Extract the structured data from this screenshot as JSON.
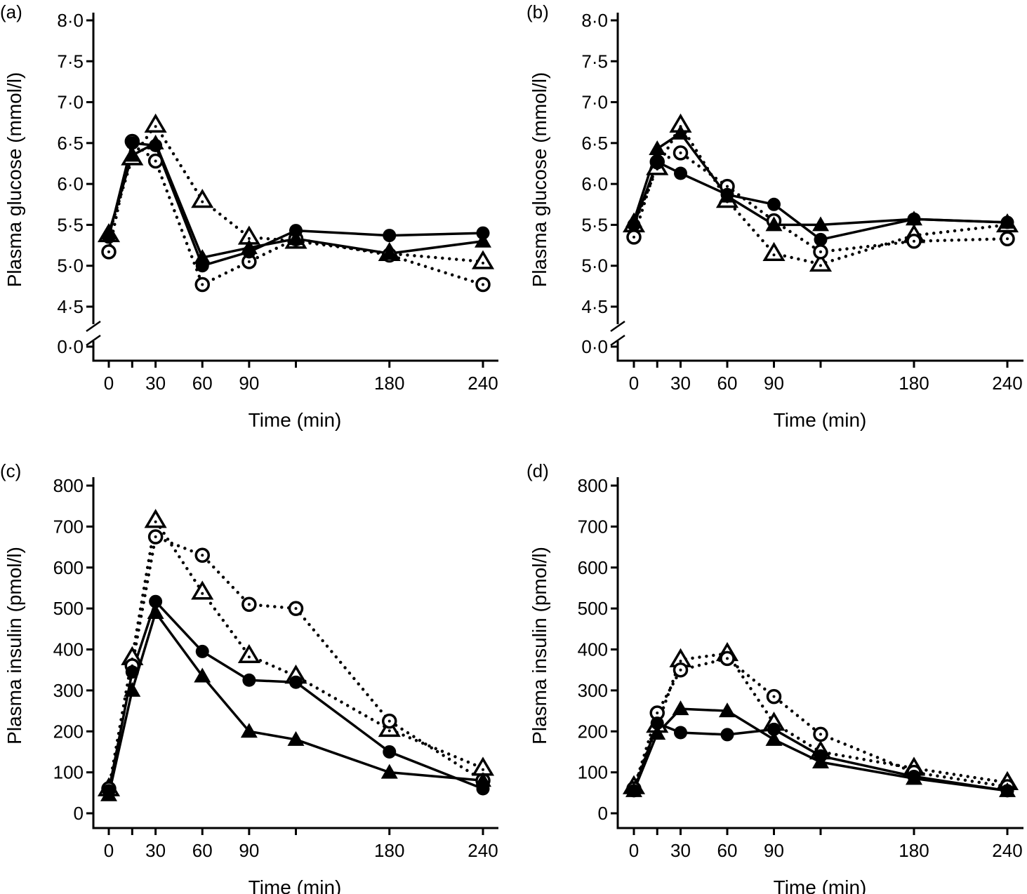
{
  "chart_data": [
    {
      "type": "line",
      "panel_label": "(a)",
      "xlabel": "Time (min)",
      "ylabel": "Plasma glucose (mmol/l)",
      "x": [
        0,
        15,
        30,
        60,
        90,
        120,
        180,
        240
      ],
      "xticks": [
        0,
        30,
        60,
        90,
        180,
        240
      ],
      "xtick_labels": [
        "0",
        "30",
        "60",
        "90",
        "180",
        "240"
      ],
      "yticks": [
        4.5,
        5.0,
        5.5,
        6.0,
        6.5,
        7.0,
        7.5,
        8.0
      ],
      "ytick_labels": [
        "4·5",
        "5·0",
        "5·5",
        "6·0",
        "6·5",
        "7·0",
        "7·5",
        "8·0"
      ],
      "broken_axis": true,
      "break_tick_label": "0·0",
      "ylim": [
        4.5,
        8.0
      ],
      "series": [
        {
          "marker": "open-triangle",
          "line": "dotted",
          "values": [
            5.38,
            6.32,
            6.72,
            5.8,
            5.35,
            5.3,
            5.15,
            5.05
          ]
        },
        {
          "marker": "open-circle",
          "line": "dotted",
          "values": [
            5.17,
            6.52,
            6.28,
            4.77,
            5.05,
            5.33,
            5.13,
            4.77
          ]
        },
        {
          "marker": "filled-triangle",
          "line": "solid",
          "values": [
            5.4,
            6.35,
            6.5,
            5.1,
            5.22,
            5.33,
            5.15,
            5.3
          ]
        },
        {
          "marker": "filled-circle",
          "line": "solid",
          "values": [
            5.35,
            6.5,
            6.47,
            5.0,
            5.17,
            5.43,
            5.37,
            5.4
          ]
        }
      ]
    },
    {
      "type": "line",
      "panel_label": "(b)",
      "xlabel": "Time (min)",
      "ylabel": "Plasma glucose (mmol/l)",
      "x": [
        0,
        15,
        30,
        60,
        90,
        120,
        180,
        240
      ],
      "xticks": [
        0,
        30,
        60,
        90,
        180,
        240
      ],
      "xtick_labels": [
        "0",
        "30",
        "60",
        "90",
        "180",
        "240"
      ],
      "yticks": [
        4.5,
        5.0,
        5.5,
        6.0,
        6.5,
        7.0,
        7.5,
        8.0
      ],
      "ytick_labels": [
        "4·5",
        "5·0",
        "5·5",
        "6·0",
        "6·5",
        "7·0",
        "7·5",
        "8·0"
      ],
      "broken_axis": true,
      "break_tick_label": "0·0",
      "ylim": [
        4.5,
        8.0
      ],
      "series": [
        {
          "marker": "open-triangle",
          "line": "dotted",
          "values": [
            5.5,
            6.2,
            6.72,
            5.8,
            5.15,
            5.02,
            5.37,
            5.5
          ]
        },
        {
          "marker": "open-circle",
          "line": "dotted",
          "values": [
            5.35,
            6.27,
            6.38,
            5.97,
            5.55,
            5.17,
            5.3,
            5.33
          ]
        },
        {
          "marker": "filled-triangle",
          "line": "solid",
          "values": [
            5.55,
            6.43,
            6.62,
            5.85,
            5.5,
            5.5,
            5.57,
            5.53
          ]
        },
        {
          "marker": "filled-circle",
          "line": "solid",
          "values": [
            5.5,
            6.27,
            6.13,
            5.87,
            5.75,
            5.32,
            5.57,
            5.53
          ]
        }
      ]
    },
    {
      "type": "line",
      "panel_label": "(c)",
      "xlabel": "Time (min)",
      "ylabel": "Plasma insulin (pmol/l)",
      "x": [
        0,
        15,
        30,
        60,
        90,
        120,
        180,
        240
      ],
      "xticks": [
        0,
        30,
        60,
        90,
        180,
        240
      ],
      "xtick_labels": [
        "0",
        "30",
        "60",
        "90",
        "180",
        "240"
      ],
      "yticks": [
        0,
        100,
        200,
        300,
        400,
        500,
        600,
        700,
        800
      ],
      "ytick_labels": [
        "0",
        "100",
        "200",
        "300",
        "400",
        "500",
        "600",
        "700",
        "800"
      ],
      "broken_axis": false,
      "ylim": [
        0,
        800
      ],
      "series": [
        {
          "marker": "open-triangle",
          "line": "dotted",
          "values": [
            60,
            380,
            715,
            540,
            385,
            335,
            205,
            110
          ]
        },
        {
          "marker": "open-circle",
          "line": "dotted",
          "values": [
            60,
            360,
            675,
            630,
            510,
            500,
            225,
            80
          ]
        },
        {
          "marker": "filled-triangle",
          "line": "solid",
          "values": [
            45,
            300,
            490,
            335,
            200,
            180,
            100,
            80
          ]
        },
        {
          "marker": "filled-circle",
          "line": "solid",
          "values": [
            55,
            345,
            517,
            395,
            325,
            320,
            150,
            60
          ]
        }
      ]
    },
    {
      "type": "line",
      "panel_label": "(d)",
      "xlabel": "Time (min)",
      "ylabel": "Plasma insulin (pmol/l)",
      "x": [
        0,
        15,
        30,
        60,
        90,
        120,
        180,
        240
      ],
      "xticks": [
        0,
        30,
        60,
        90,
        180,
        240
      ],
      "xtick_labels": [
        "0",
        "30",
        "60",
        "90",
        "180",
        "240"
      ],
      "yticks": [
        0,
        100,
        200,
        300,
        400,
        500,
        600,
        700,
        800
      ],
      "ytick_labels": [
        "0",
        "100",
        "200",
        "300",
        "400",
        "500",
        "600",
        "700",
        "800"
      ],
      "broken_axis": false,
      "ylim": [
        0,
        800
      ],
      "series": [
        {
          "marker": "open-triangle",
          "line": "dotted",
          "values": [
            65,
            215,
            375,
            390,
            220,
            150,
            110,
            75
          ]
        },
        {
          "marker": "open-circle",
          "line": "dotted",
          "values": [
            60,
            245,
            350,
            378,
            285,
            193,
            100,
            65
          ]
        },
        {
          "marker": "filled-triangle",
          "line": "solid",
          "values": [
            55,
            195,
            255,
            250,
            180,
            125,
            85,
            55
          ]
        },
        {
          "marker": "filled-circle",
          "line": "solid",
          "values": [
            55,
            220,
            197,
            192,
            205,
            140,
            90,
            55
          ]
        }
      ]
    }
  ]
}
